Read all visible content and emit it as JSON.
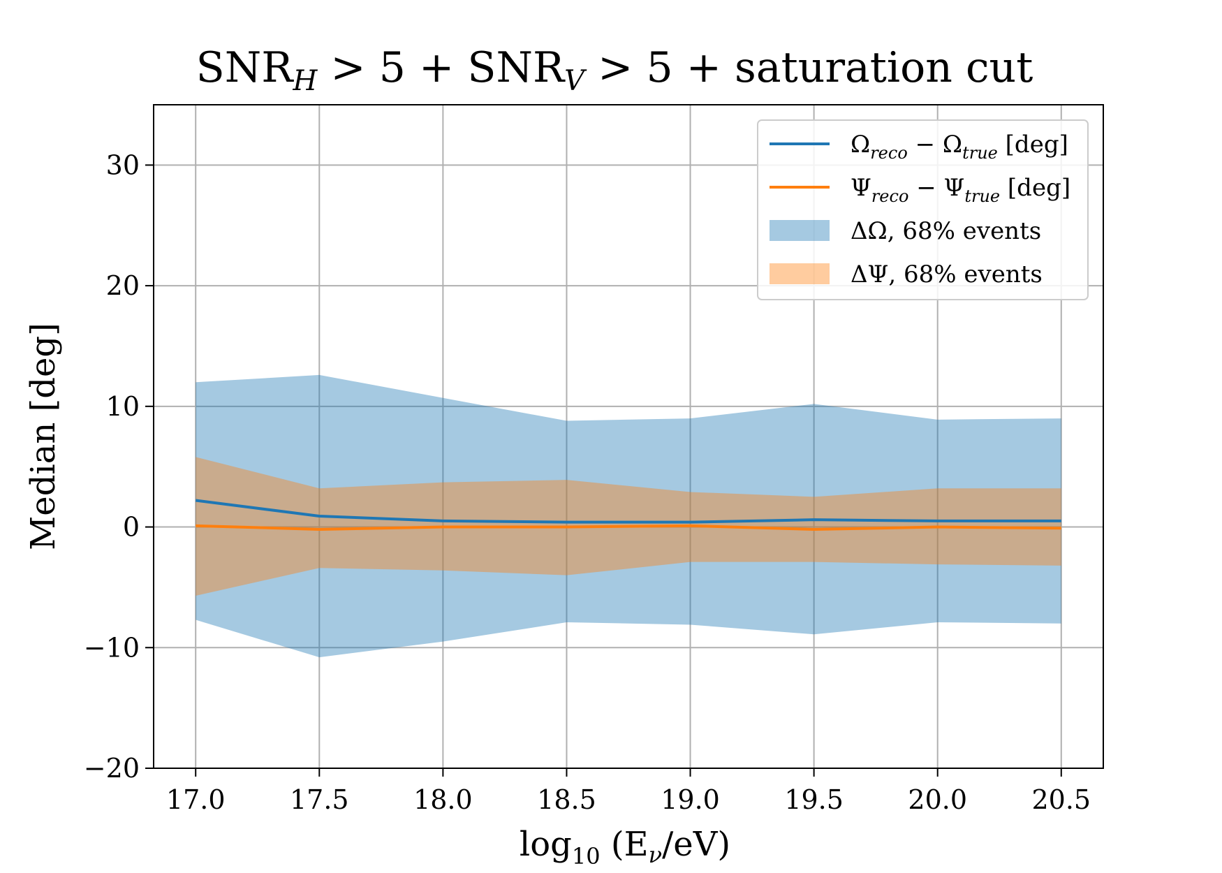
{
  "chart_data": {
    "type": "line",
    "title": "SNR_H > 5 + SNR_V > 5 + saturation cut",
    "title_parts": {
      "a": "SNR",
      "a_sub": "H",
      "b": " > 5 + SNR",
      "b_sub": "V",
      "c": " > 5 + saturation cut"
    },
    "xlabel": "log10 (Eν/eV)",
    "xlabel_parts": {
      "a": "log",
      "a_sub": "10",
      "b": " (E",
      "b_sub": "ν",
      "c": "/eV)"
    },
    "ylabel": "Median [deg]",
    "xlim": [
      16.83,
      20.67
    ],
    "ylim": [
      -20,
      35
    ],
    "x_ticks": [
      17.0,
      17.5,
      18.0,
      18.5,
      19.0,
      19.5,
      20.0,
      20.5
    ],
    "x_tick_labels": [
      "17.0",
      "17.5",
      "18.0",
      "18.5",
      "19.0",
      "19.5",
      "20.0",
      "20.5"
    ],
    "y_ticks": [
      -20,
      -10,
      0,
      10,
      20,
      30
    ],
    "y_tick_labels": [
      "−20",
      "−10",
      "0",
      "10",
      "20",
      "30"
    ],
    "grid": true,
    "legend_position": "top-right",
    "x": [
      17.0,
      17.5,
      18.0,
      18.5,
      19.0,
      19.5,
      20.0,
      20.5
    ],
    "series": [
      {
        "name": "Ω_reco − Ω_true [deg]",
        "label_parts": {
          "a": "Ω",
          "a_sub": "reco",
          "b": " − Ω",
          "b_sub": "true",
          "c": " [deg]"
        },
        "kind": "line",
        "color": "#1f77b4",
        "values": [
          2.2,
          0.9,
          0.5,
          0.4,
          0.4,
          0.6,
          0.5,
          0.5
        ]
      },
      {
        "name": "Ψ_reco − Ψ_true [deg]",
        "label_parts": {
          "a": "Ψ",
          "a_sub": "reco",
          "b": " − Ψ",
          "b_sub": "true",
          "c": " [deg]"
        },
        "kind": "line",
        "color": "#ff7f0e",
        "values": [
          0.1,
          -0.2,
          0.0,
          0.0,
          0.1,
          -0.2,
          0.0,
          -0.1
        ]
      },
      {
        "name": "ΔΩ, 68% events",
        "kind": "band",
        "color": "#1f77b4",
        "opacity": 0.4,
        "upper": [
          12.0,
          12.6,
          10.7,
          8.8,
          9.0,
          10.2,
          8.9,
          9.0
        ],
        "lower": [
          -7.7,
          -10.8,
          -9.5,
          -7.9,
          -8.1,
          -8.9,
          -7.9,
          -8.0
        ]
      },
      {
        "name": "ΔΨ, 68% events",
        "kind": "band",
        "color": "#ff7f0e",
        "opacity": 0.4,
        "upper": [
          5.8,
          3.2,
          3.7,
          3.9,
          2.9,
          2.5,
          3.2,
          3.2
        ],
        "lower": [
          -5.7,
          -3.4,
          -3.6,
          -4.0,
          -2.9,
          -2.9,
          -3.1,
          -3.2
        ]
      }
    ]
  }
}
